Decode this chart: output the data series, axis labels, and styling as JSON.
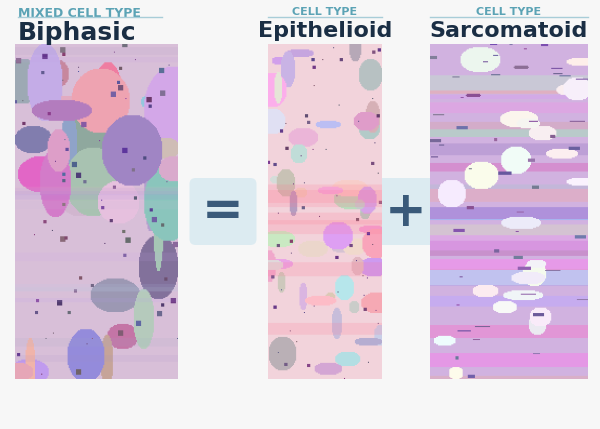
{
  "bg_color": "#f7f7f7",
  "title_label": "MIXED CELL TYPE",
  "title_color": "#5ba3b5",
  "title_fontsize": 9,
  "biphasic_label": "Biphasic",
  "biphasic_color": "#1a2e44",
  "biphasic_fontsize": 18,
  "cell_type_label": "CELL TYPE",
  "cell_type_color": "#5ba3b5",
  "cell_type_fontsize": 8,
  "epithelioid_label": "Epithelioid",
  "sarcomatoid_label": "Sarcomatoid",
  "sub_label_color": "#1a2e44",
  "sub_label_fontsize": 16,
  "equals_sign": "=",
  "plus_sign": "+",
  "operator_color": "#3a5a7a",
  "operator_fontsize": 36,
  "operator_bg": "#d4e8f0",
  "line_color": "#a8cdd8"
}
